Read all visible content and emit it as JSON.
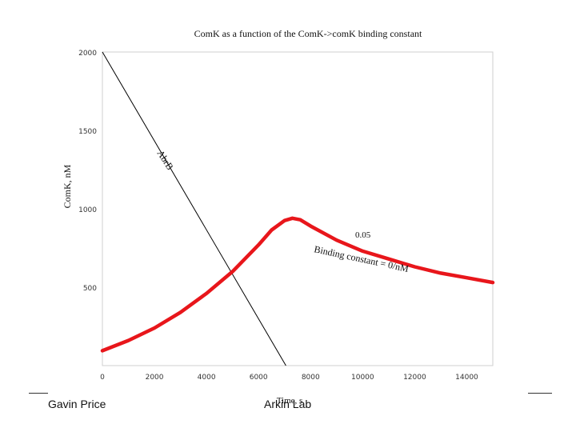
{
  "chart_data": {
    "type": "line",
    "title": "ComK as a function of the ComK->comK binding constant",
    "xlabel": "Time, s",
    "ylabel": "ComK, nM",
    "xlim": [
      0,
      15000
    ],
    "ylim": [
      0,
      2000
    ],
    "x_ticks": [
      0,
      2000,
      4000,
      6000,
      8000,
      10000,
      12000,
      14000
    ],
    "y_ticks": [
      500,
      1000,
      1500,
      2000
    ],
    "grid": false,
    "series": [
      {
        "name": "AbrB",
        "color": "#000000",
        "x": [
          0,
          7050
        ],
        "y": [
          2000,
          0
        ]
      },
      {
        "name": "",
        "color": "#e8161b",
        "x": [
          0,
          1000,
          2000,
          3000,
          4000,
          5000,
          6000,
          6500,
          7000,
          7300,
          7600,
          8000,
          9000,
          10000,
          11000,
          12000,
          13000,
          14000,
          15000
        ],
        "y": [
          95,
          160,
          240,
          340,
          460,
          600,
          770,
          865,
          925,
          940,
          930,
          890,
          800,
          730,
          680,
          630,
          590,
          560,
          530
        ]
      }
    ],
    "annotations": [
      {
        "text": "AbrB"
      },
      {
        "text": "0.05"
      },
      {
        "text": "Binding constant = 0/nM"
      }
    ]
  },
  "footer": {
    "left": "Gavin Price",
    "center": "Arkin Lab"
  }
}
